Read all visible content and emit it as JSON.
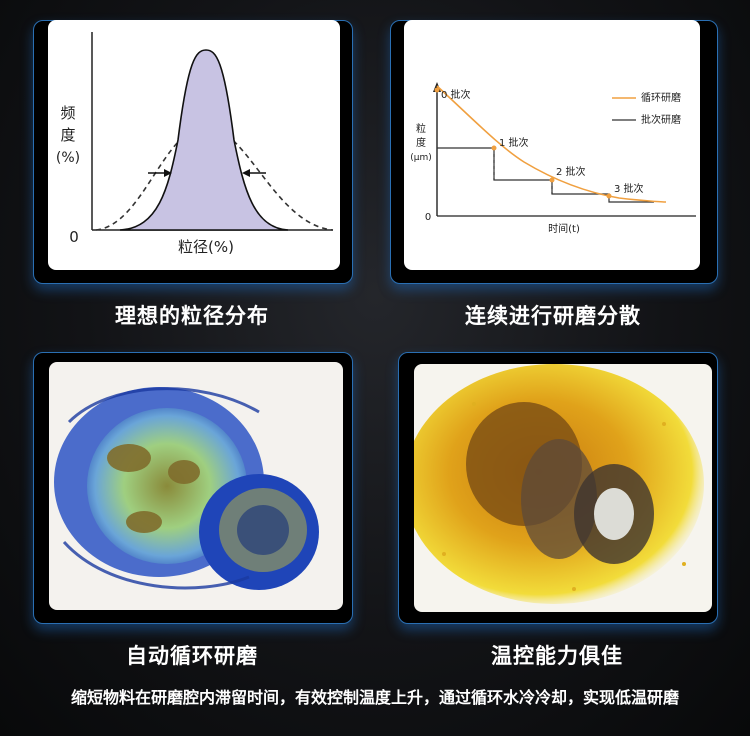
{
  "panels": [
    {
      "caption": "理想的粒径分布",
      "chart": {
        "ylabel": [
          "频",
          "度",
          "(%)"
        ],
        "origin": "0",
        "xlabel": "粒径(%)"
      }
    },
    {
      "caption": "连续进行研磨分散",
      "chart": {
        "ylabel": [
          "粒",
          "度",
          "(μm)"
        ],
        "origin": "0",
        "xlabel": "时间(t)",
        "batch_labels": [
          "0 批次",
          "1 批次",
          "2 批次",
          "3 批次"
        ],
        "legend": [
          {
            "label": "循环研磨",
            "color": "#f0a040"
          },
          {
            "label": "批次研磨",
            "color": "#333333"
          }
        ]
      }
    },
    {
      "caption": "自动循环研磨"
    },
    {
      "caption": "温控能力俱佳"
    }
  ],
  "footer": "缩短物料在研磨腔内滞留时间，有效控制温度上升，通过循环水冷冷却，实现低温研磨"
}
